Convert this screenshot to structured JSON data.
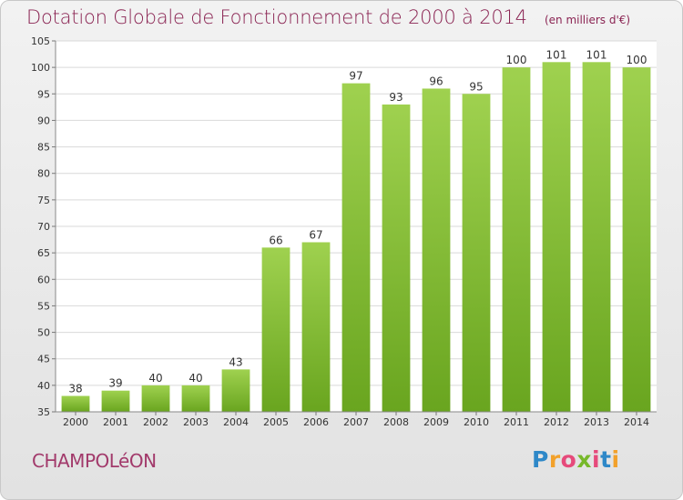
{
  "header": {
    "title": "Dotation Globale de Fonctionnement de 2000 à 2014",
    "unit": "(en milliers d'€)"
  },
  "footer": {
    "commune": "CHAMPOLéON",
    "brand": "Proxiti"
  },
  "colors": {
    "bar_top": "#9fd14f",
    "bar_bottom": "#69a51f",
    "title": "#8a2352",
    "axis_text": "#333333",
    "grid": "#d9d9d9"
  },
  "chart_data": {
    "type": "bar",
    "title": "Dotation Globale de Fonctionnement de 2000 à 2014",
    "xlabel": "",
    "ylabel": "",
    "categories": [
      "2000",
      "2001",
      "2002",
      "2003",
      "2004",
      "2005",
      "2006",
      "2007",
      "2008",
      "2009",
      "2010",
      "2011",
      "2012",
      "2013",
      "2014"
    ],
    "values": [
      38,
      39,
      40,
      40,
      43,
      66,
      67,
      97,
      93,
      96,
      95,
      100,
      101,
      101,
      100
    ],
    "ylim": [
      35,
      105
    ],
    "yticks": [
      35,
      40,
      45,
      50,
      55,
      60,
      65,
      70,
      75,
      80,
      85,
      90,
      95,
      100,
      105
    ],
    "grid": true,
    "data_labels": true
  }
}
